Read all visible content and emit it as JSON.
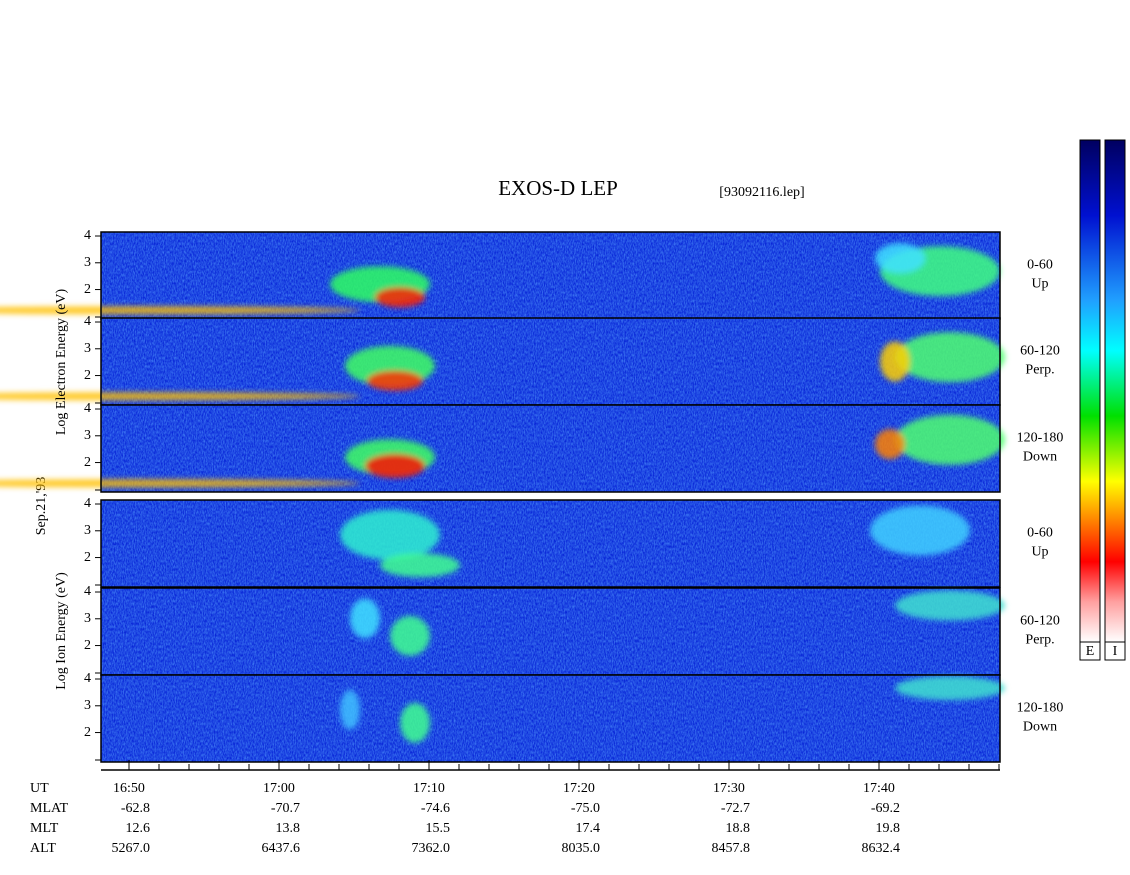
{
  "title": "EXOS-D LEP",
  "file": "[93092116.lep]",
  "date": "Sep.21,'93",
  "groups": [
    {
      "axis_label": "Log  Electron  Energy (eV)",
      "panels": [
        {
          "angle": "0-60",
          "direction": "Up",
          "ylim": [
            0.9,
            4.15
          ],
          "yticks": [
            2,
            3,
            4
          ]
        },
        {
          "angle": "60-120",
          "direction": "Perp.",
          "ylim": [
            0.9,
            4.15
          ],
          "yticks": [
            2,
            3,
            4
          ]
        },
        {
          "angle": "120-180",
          "direction": "Down",
          "ylim": [
            0.9,
            4.15
          ],
          "yticks": [
            2,
            3,
            4
          ]
        }
      ]
    },
    {
      "axis_label": "Log  Ion  Energy (eV)",
      "panels": [
        {
          "angle": "0-60",
          "direction": "Up",
          "ylim": [
            0.9,
            4.15
          ],
          "yticks": [
            2,
            3,
            4
          ]
        },
        {
          "angle": "60-120",
          "direction": "Perp.",
          "ylim": [
            0.9,
            4.15
          ],
          "yticks": [
            2,
            3,
            4
          ]
        },
        {
          "angle": "120-180",
          "direction": "Down",
          "ylim": [
            0.9,
            4.15
          ],
          "yticks": [
            2,
            3,
            4
          ]
        }
      ]
    }
  ],
  "rows": [
    {
      "label": "UT",
      "values": [
        "16:50",
        "17:00",
        "17:10",
        "17:20",
        "17:30",
        "17:40"
      ]
    },
    {
      "label": "MLAT",
      "values": [
        "-62.8",
        "-70.7",
        "-74.6",
        "-75.0",
        "-72.7",
        "-69.2"
      ]
    },
    {
      "label": "MLT",
      "values": [
        "12.6",
        "13.8",
        "15.5",
        "17.4",
        "18.8",
        "19.8"
      ]
    },
    {
      "label": "ALT",
      "values": [
        "5267.0",
        "6437.6",
        "7362.0",
        "8035.0",
        "8457.8",
        "8632.4"
      ]
    }
  ],
  "colorbar_labels": [
    "E",
    "I"
  ]
}
